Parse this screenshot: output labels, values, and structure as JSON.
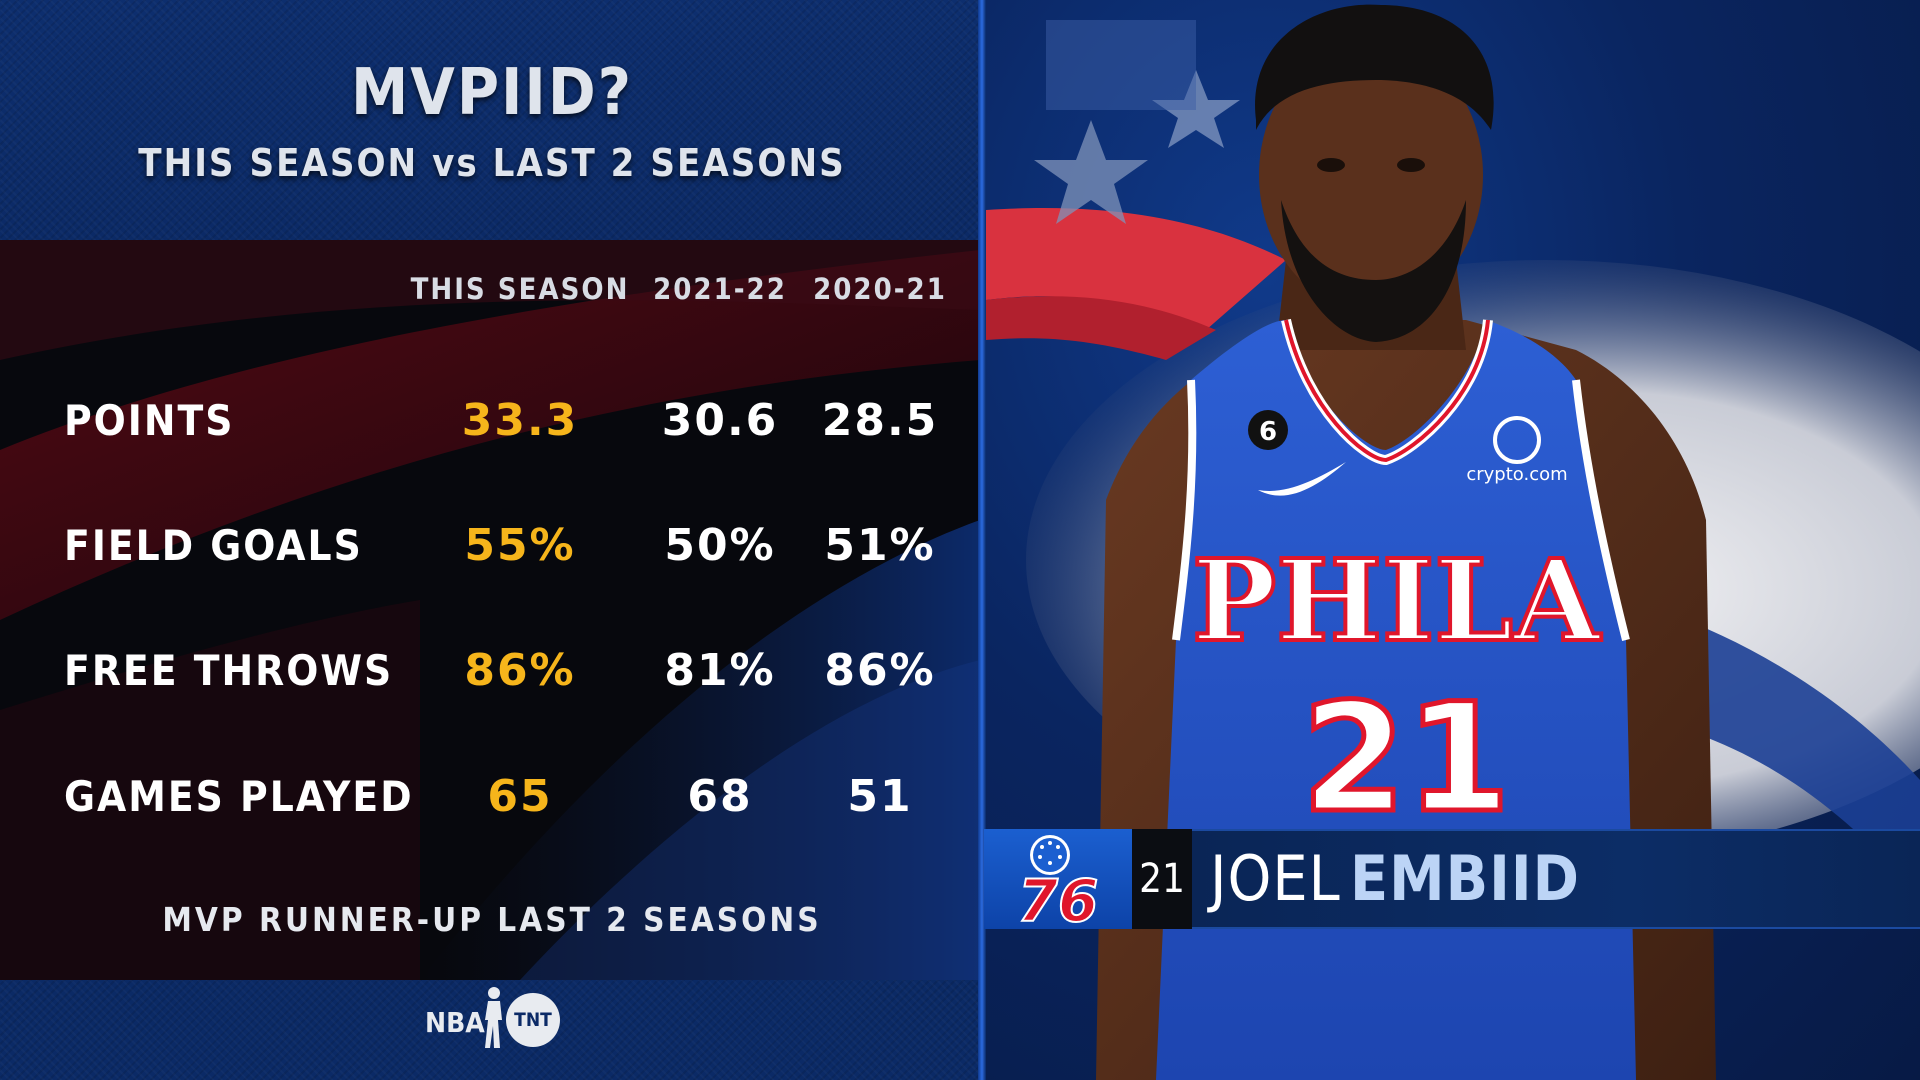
{
  "graphic": {
    "title": "MVPIID?",
    "subtitle": "THIS SEASON vs LAST 2 SEASONS",
    "columns": [
      "THIS SEASON",
      "2021-22",
      "2020-21"
    ],
    "rows": [
      {
        "label": "POINTS",
        "this_season": "33.3",
        "season_2021_22": "30.6",
        "season_2020_21": "28.5"
      },
      {
        "label": "FIELD GOALS",
        "this_season": "55%",
        "season_2021_22": "50%",
        "season_2020_21": "51%"
      },
      {
        "label": "FREE THROWS",
        "this_season": "86%",
        "season_2021_22": "81%",
        "season_2020_21": "86%"
      },
      {
        "label": "GAMES PLAYED",
        "this_season": "65",
        "season_2021_22": "68",
        "season_2020_21": "51"
      }
    ],
    "footnote": "MVP RUNNER-UP LAST 2 SEASONS",
    "highlight_color": "#f6b51b",
    "broadcast_logos": {
      "nba": "NBA",
      "tnt": "TNT"
    }
  },
  "player": {
    "number": "21",
    "first_name": "JOEL",
    "last_name": "EMBIID",
    "team_logo_text": "76",
    "jersey_text": "PHILA",
    "jersey_number": "21",
    "jersey_patch": "6",
    "sponsor": "crypto.com"
  },
  "colors": {
    "panel_blue": "#0b2a66",
    "team_blue": "#1b5fd0",
    "team_red": "#e0162b"
  }
}
